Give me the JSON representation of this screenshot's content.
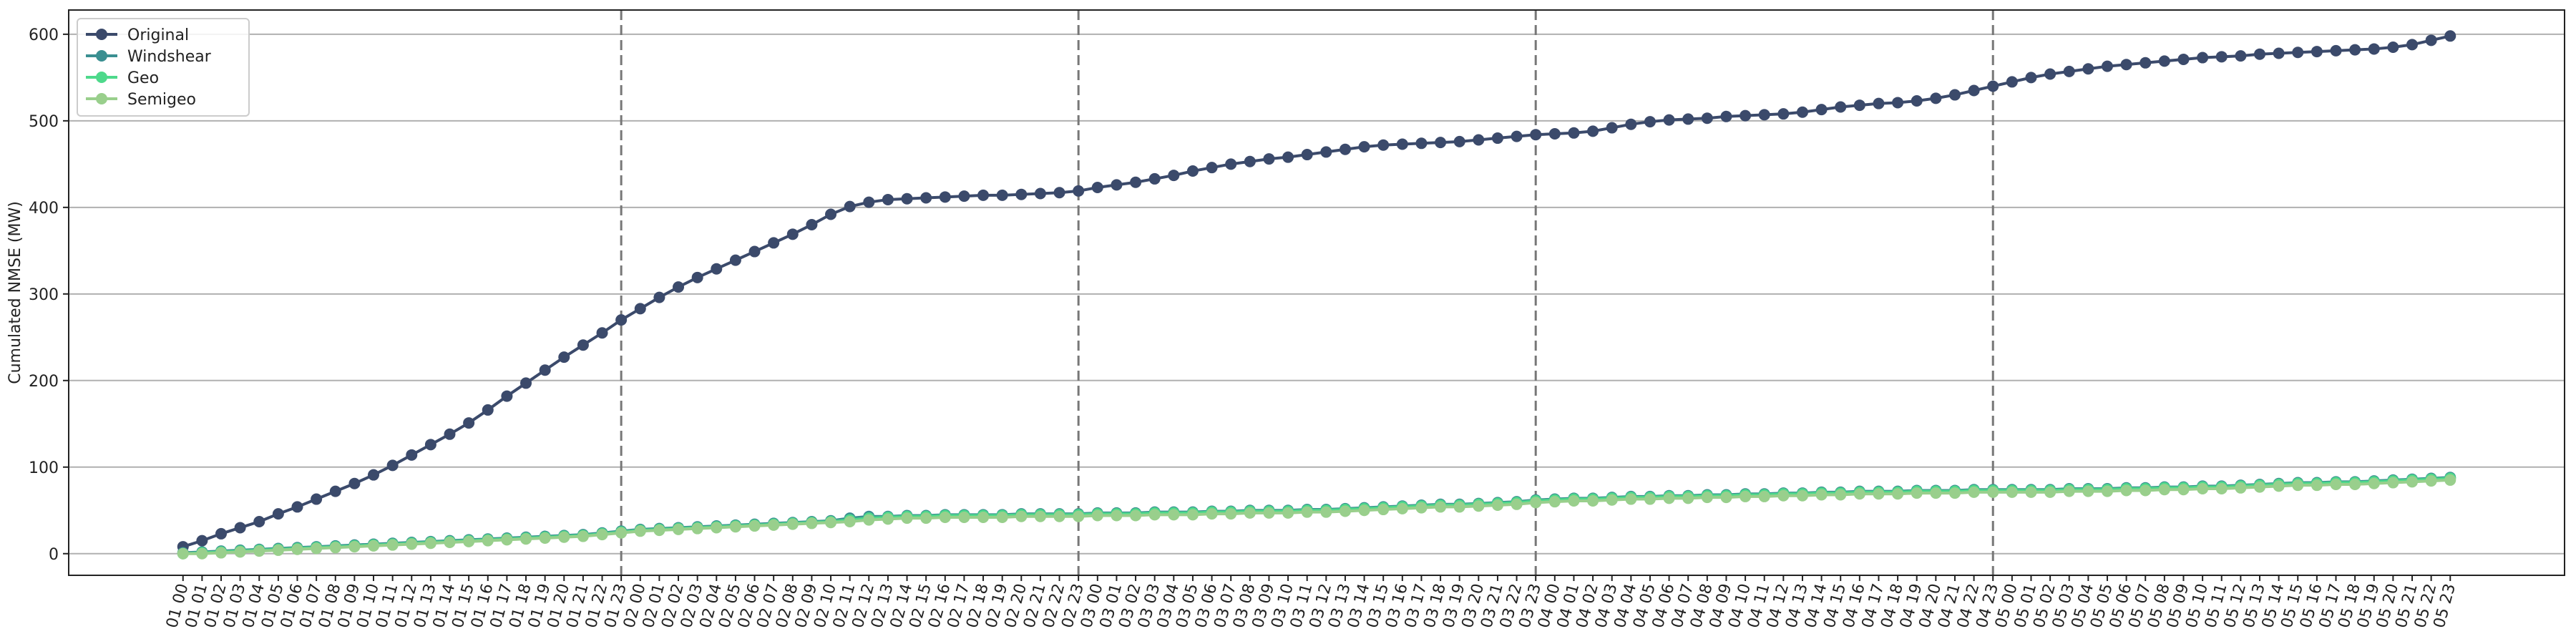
{
  "chart_data": {
    "type": "line",
    "ylabel": "Cumulated NMSE (MW)",
    "categories": [
      "01 00",
      "01 01",
      "01 02",
      "01 03",
      "01 04",
      "01 05",
      "01 06",
      "01 07",
      "01 08",
      "01 09",
      "01 10",
      "01 11",
      "01 12",
      "01 13",
      "01 14",
      "01 15",
      "01 16",
      "01 17",
      "01 18",
      "01 19",
      "01 20",
      "01 21",
      "01 22",
      "01 23",
      "02 00",
      "02 01",
      "02 02",
      "02 03",
      "02 04",
      "02 05",
      "02 06",
      "02 07",
      "02 08",
      "02 09",
      "02 10",
      "02 11",
      "02 12",
      "02 13",
      "02 14",
      "02 15",
      "02 16",
      "02 17",
      "02 18",
      "02 19",
      "02 20",
      "02 21",
      "02 22",
      "02 23",
      "03 00",
      "03 01",
      "03 02",
      "03 03",
      "03 04",
      "03 05",
      "03 06",
      "03 07",
      "03 08",
      "03 09",
      "03 10",
      "03 11",
      "03 12",
      "03 13",
      "03 14",
      "03 15",
      "03 16",
      "03 17",
      "03 18",
      "03 19",
      "03 20",
      "03 21",
      "03 22",
      "03 23",
      "04 00",
      "04 01",
      "04 02",
      "04 03",
      "04 04",
      "04 05",
      "04 06",
      "04 07",
      "04 08",
      "04 09",
      "04 10",
      "04 11",
      "04 12",
      "04 13",
      "04 14",
      "04 15",
      "04 16",
      "04 17",
      "04 18",
      "04 19",
      "04 20",
      "04 21",
      "04 22",
      "04 23",
      "05 00",
      "05 01",
      "05 02",
      "05 03",
      "05 04",
      "05 05",
      "05 06",
      "05 07",
      "05 08",
      "05 09",
      "05 10",
      "05 11",
      "05 12",
      "05 13",
      "05 14",
      "05 15",
      "05 16",
      "05 17",
      "05 18",
      "05 19",
      "05 20",
      "05 21",
      "05 22",
      "05 23"
    ],
    "series": [
      {
        "name": "Original",
        "color": "#3b4a6b",
        "values": [
          8,
          15,
          23,
          30,
          37,
          46,
          54,
          63,
          72,
          81,
          91,
          102,
          114,
          126,
          138,
          151,
          166,
          182,
          197,
          212,
          227,
          241,
          255,
          270,
          283,
          296,
          308,
          319,
          329,
          339,
          349,
          359,
          369,
          380,
          392,
          401,
          406,
          409,
          410,
          411,
          412,
          413,
          414,
          414,
          415,
          416,
          417,
          419,
          423,
          426,
          429,
          433,
          437,
          442,
          446,
          450,
          453,
          456,
          458,
          461,
          464,
          467,
          470,
          472,
          473,
          474,
          475,
          476,
          478,
          480,
          482,
          484,
          485,
          486,
          488,
          492,
          496,
          499,
          501,
          502,
          503,
          505,
          506,
          507,
          508,
          510,
          513,
          516,
          518,
          520,
          521,
          523,
          526,
          530,
          535,
          540,
          545,
          550,
          554,
          557,
          560,
          563,
          565,
          567,
          569,
          571,
          573,
          574,
          575,
          577,
          578,
          579,
          580,
          581,
          582,
          583,
          585,
          588,
          593,
          598
        ]
      },
      {
        "name": "Windshear",
        "color": "#3a8f91",
        "values": [
          1,
          2,
          3,
          4,
          5,
          6,
          7,
          8,
          9,
          10,
          11,
          12,
          13,
          14,
          15,
          16,
          17,
          18,
          19,
          20,
          21,
          22,
          24,
          26,
          28,
          29,
          30,
          31,
          32,
          33,
          34,
          35,
          36,
          37,
          38,
          41,
          43,
          43,
          44,
          44,
          45,
          45,
          45,
          45,
          46,
          46,
          46,
          46,
          47,
          47,
          47,
          48,
          48,
          48,
          49,
          49,
          50,
          50,
          50,
          51,
          51,
          52,
          53,
          54,
          55,
          56,
          57,
          57,
          58,
          59,
          60,
          62,
          63,
          64,
          64,
          65,
          66,
          66,
          67,
          67,
          68,
          68,
          69,
          69,
          70,
          70,
          71,
          71,
          72,
          72,
          72,
          73,
          73,
          73,
          74,
          74,
          74,
          74,
          74,
          75,
          75,
          75,
          76,
          76,
          77,
          77,
          78,
          78,
          79,
          80,
          81,
          82,
          82,
          83,
          83,
          84,
          85,
          86,
          87,
          88
        ]
      },
      {
        "name": "Geo",
        "color": "#4ed98b",
        "values": [
          0,
          1,
          2,
          3,
          4,
          5,
          6,
          7,
          8,
          9,
          10,
          11,
          12,
          13,
          14,
          15,
          16,
          17,
          18,
          19,
          20,
          21,
          23,
          25,
          27,
          28,
          29,
          30,
          31,
          32,
          33,
          34,
          35,
          36,
          37,
          39,
          41,
          42,
          43,
          43,
          44,
          44,
          44,
          44,
          45,
          45,
          45,
          45,
          46,
          46,
          46,
          47,
          47,
          47,
          48,
          48,
          49,
          49,
          49,
          50,
          50,
          51,
          52,
          53,
          54,
          55,
          56,
          56,
          57,
          58,
          59,
          61,
          62,
          63,
          63,
          64,
          65,
          65,
          66,
          66,
          67,
          67,
          68,
          68,
          69,
          69,
          70,
          70,
          71,
          71,
          71,
          72,
          72,
          72,
          73,
          73,
          73,
          73,
          73,
          74,
          74,
          74,
          75,
          75,
          76,
          76,
          77,
          77,
          78,
          79,
          80,
          81,
          81,
          82,
          82,
          83,
          84,
          85,
          86,
          87
        ]
      },
      {
        "name": "Semigeo",
        "color": "#99cf8c",
        "values": [
          0,
          0,
          1,
          2,
          3,
          4,
          5,
          6,
          7,
          8,
          9,
          10,
          11,
          12,
          13,
          14,
          15,
          16,
          17,
          18,
          19,
          20,
          22,
          24,
          26,
          27,
          28,
          29,
          30,
          31,
          32,
          33,
          34,
          35,
          36,
          37,
          39,
          40,
          41,
          41,
          42,
          42,
          42,
          42,
          43,
          43,
          43,
          43,
          44,
          44,
          44,
          45,
          45,
          45,
          46,
          46,
          47,
          47,
          47,
          48,
          48,
          49,
          50,
          51,
          52,
          53,
          54,
          54,
          55,
          56,
          57,
          59,
          60,
          61,
          61,
          62,
          63,
          63,
          64,
          64,
          65,
          65,
          66,
          66,
          67,
          67,
          68,
          68,
          69,
          69,
          69,
          70,
          70,
          70,
          71,
          71,
          71,
          71,
          71,
          72,
          72,
          72,
          73,
          73,
          74,
          74,
          75,
          75,
          76,
          77,
          78,
          79,
          79,
          80,
          80,
          81,
          82,
          83,
          84,
          85
        ]
      }
    ],
    "vlines": [
      "01 23",
      "02 23",
      "03 23",
      "04 23"
    ],
    "ylim": [
      -25,
      628
    ],
    "yticks": [
      0,
      100,
      200,
      300,
      400,
      500,
      600
    ],
    "grid": true,
    "legend": "upper left"
  }
}
